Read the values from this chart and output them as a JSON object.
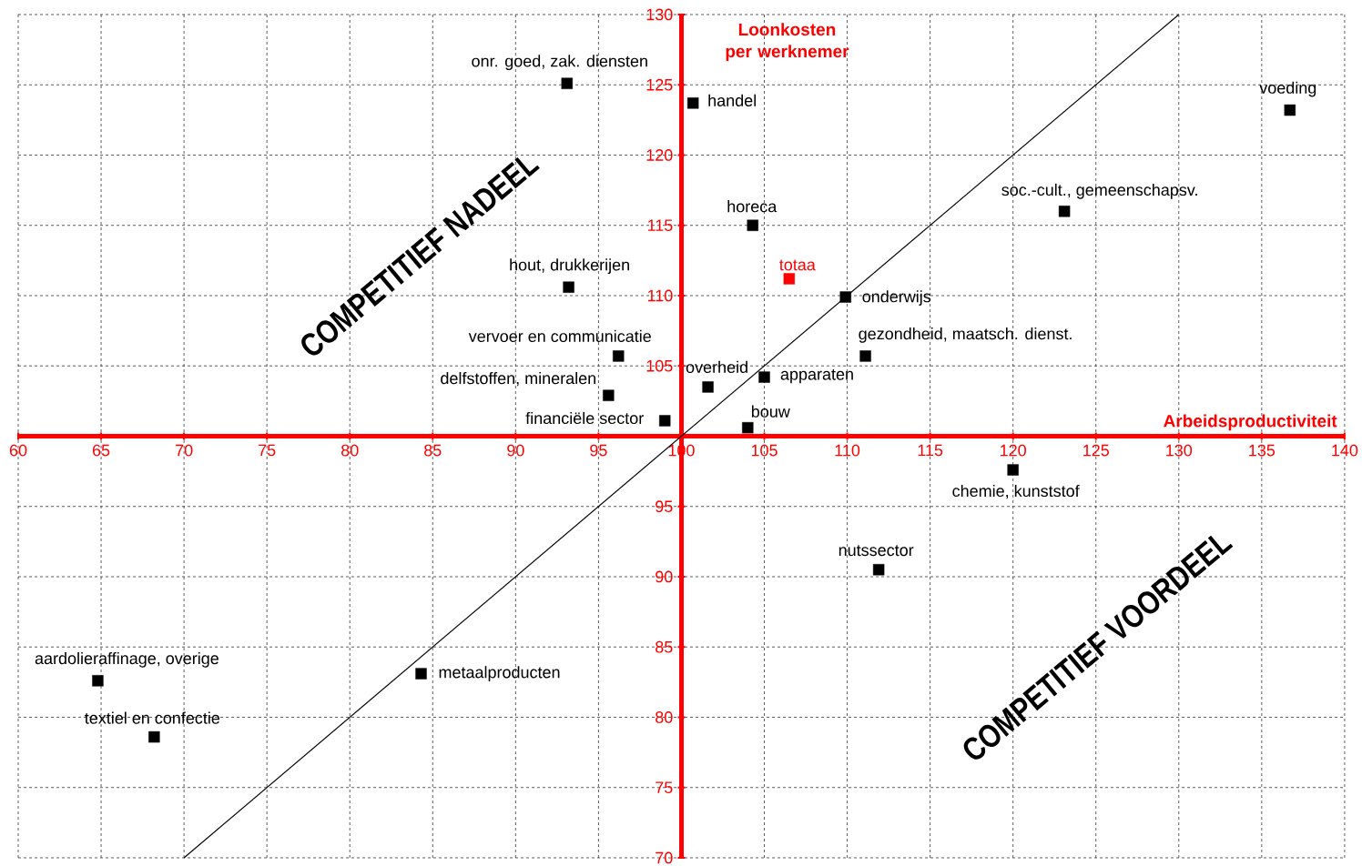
{
  "chart_data": {
    "type": "scatter",
    "xlabel": "Arbeidsproductiviteit",
    "ylabel": "Loonkosten per werknemer",
    "xlim": [
      60,
      140
    ],
    "ylim": [
      70,
      130
    ],
    "xticks": [
      60,
      65,
      70,
      75,
      80,
      85,
      90,
      95,
      100,
      105,
      110,
      115,
      120,
      125,
      130,
      135,
      140
    ],
    "yticks": [
      70,
      75,
      80,
      85,
      90,
      95,
      {
        "value": 100,
        "label": null
      },
      105,
      110,
      115,
      120,
      125,
      130
    ],
    "grid": true,
    "marker": "square",
    "annotations": [
      "COMPETITIEF NADEEL",
      "COMPETITIEF VOORDEEL"
    ],
    "series": [
      {
        "name": "onr. goed, zak. diensten",
        "color": "#000000",
        "x": [
          93.1
        ],
        "values": [
          125.1
        ]
      },
      {
        "name": "handel",
        "color": "#000000",
        "x": [
          100.7
        ],
        "values": [
          123.7
        ]
      },
      {
        "name": "voeding",
        "color": "#000000",
        "x": [
          136.7
        ],
        "values": [
          123.2
        ]
      },
      {
        "name": "soc.-cult., gemeenschapsv.",
        "color": "#000000",
        "x": [
          123.1
        ],
        "values": [
          116.0
        ]
      },
      {
        "name": "horeca",
        "color": "#000000",
        "x": [
          104.3
        ],
        "values": [
          115.0
        ]
      },
      {
        "name": "totaa",
        "color": "#ff0000",
        "x": [
          106.5
        ],
        "values": [
          111.2
        ]
      },
      {
        "name": "hout, drukkerijen",
        "color": "#000000",
        "x": [
          93.2
        ],
        "values": [
          110.6
        ]
      },
      {
        "name": "onderwijs",
        "color": "#000000",
        "x": [
          109.9
        ],
        "values": [
          109.9
        ]
      },
      {
        "name": "vervoer en communicatie",
        "color": "#000000",
        "x": [
          96.2
        ],
        "values": [
          105.7
        ]
      },
      {
        "name": "gezondheid, maatsch. dienst.",
        "color": "#000000",
        "x": [
          111.1
        ],
        "values": [
          105.7
        ]
      },
      {
        "name": "overheid",
        "color": "#000000",
        "x": [
          101.6
        ],
        "values": [
          103.5
        ]
      },
      {
        "name": "apparaten",
        "color": "#000000",
        "x": [
          105.0
        ],
        "values": [
          104.2
        ]
      },
      {
        "name": "delfstoffen, mineralen",
        "color": "#000000",
        "x": [
          95.6
        ],
        "values": [
          102.9
        ]
      },
      {
        "name": "financiële sector",
        "color": "#000000",
        "x": [
          99.0
        ],
        "values": [
          101.1
        ]
      },
      {
        "name": "bouw",
        "color": "#000000",
        "x": [
          104.0
        ],
        "values": [
          100.6
        ]
      },
      {
        "name": "chemie, kunststof",
        "color": "#000000",
        "x": [
          120.0
        ],
        "values": [
          97.6
        ]
      },
      {
        "name": "nutssector",
        "color": "#000000",
        "x": [
          111.9
        ],
        "values": [
          90.5
        ]
      },
      {
        "name": "aardolieraffinage, overige",
        "color": "#000000",
        "x": [
          64.8
        ],
        "values": [
          82.6
        ]
      },
      {
        "name": "metaalproducten",
        "color": "#000000",
        "x": [
          84.3
        ],
        "values": [
          83.1
        ]
      },
      {
        "name": "textiel en confectie",
        "color": "#000000",
        "x": [
          68.2
        ],
        "values": [
          78.6
        ]
      },
      {
        "type": "line",
        "marker": "none",
        "color": "#000000",
        "x": [
          70,
          130
        ],
        "values": [
          70,
          130
        ]
      }
    ]
  }
}
